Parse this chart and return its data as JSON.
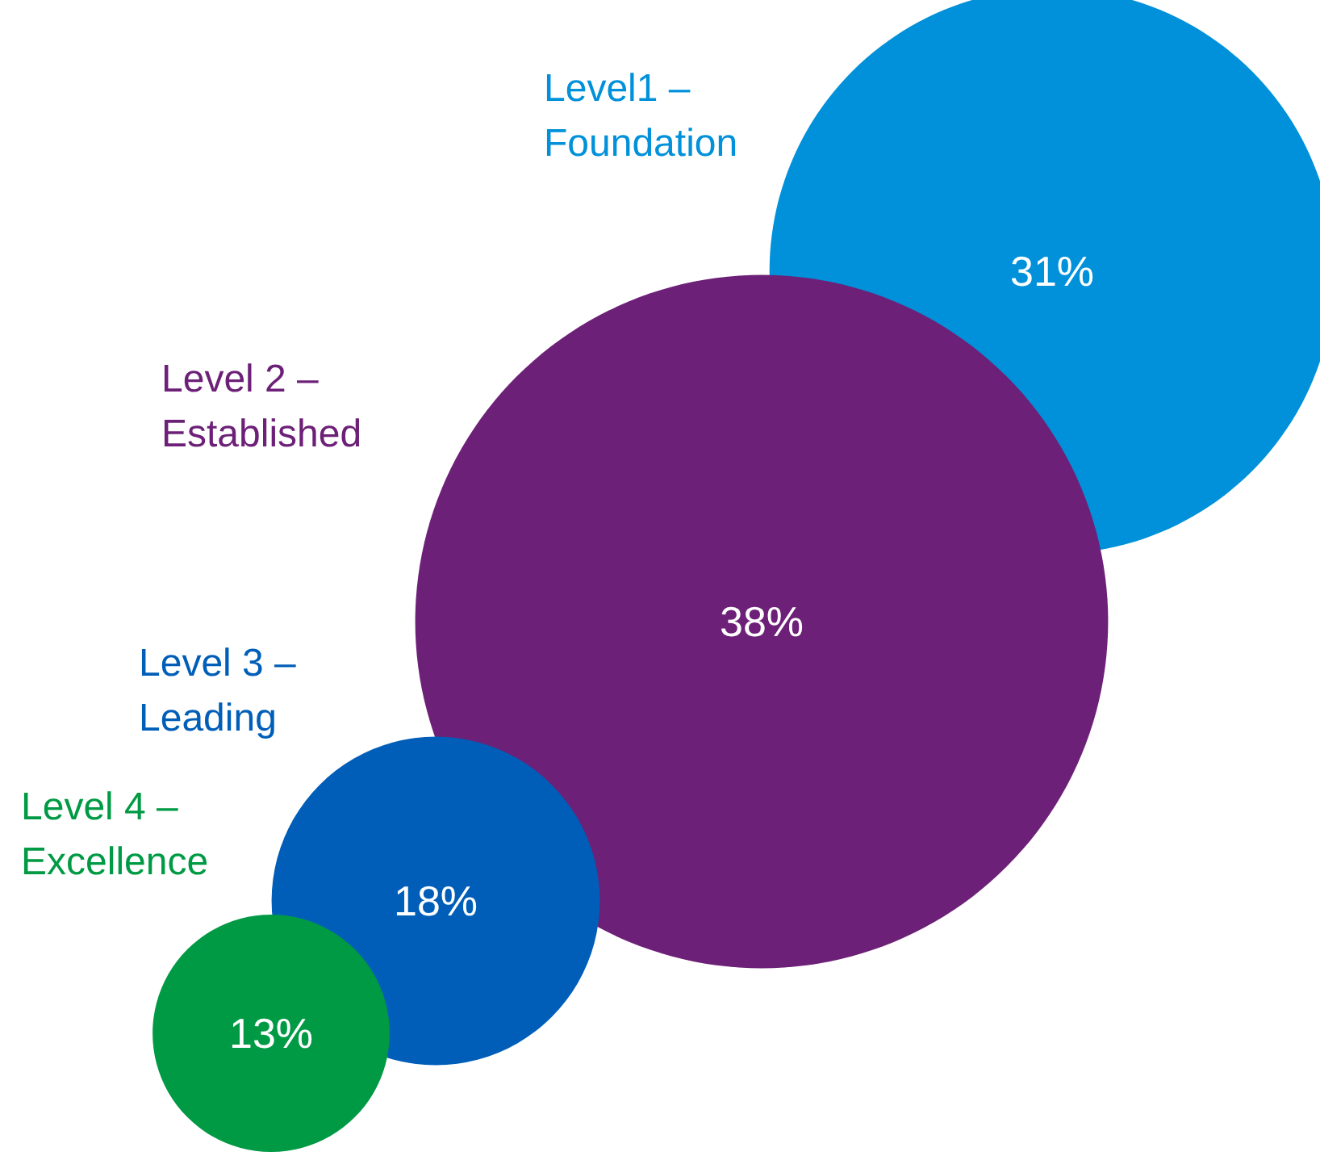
{
  "chart_data": {
    "type": "other",
    "categories": [
      "Level1 – Foundation",
      "Level 2 – Established",
      "Level 3 – Leading",
      "Level 4 – Excellence"
    ],
    "values": [
      31,
      38,
      18,
      13
    ],
    "colors": [
      "#0091da",
      "#6d2077",
      "#005eb8",
      "#009a44"
    ],
    "value_labels": [
      "31%",
      "38%",
      "18%",
      "13%"
    ]
  }
}
